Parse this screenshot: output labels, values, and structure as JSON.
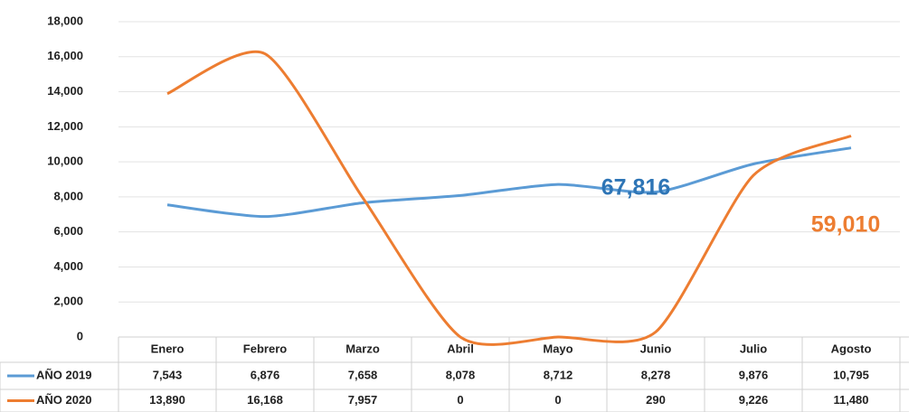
{
  "chart_data": {
    "type": "line",
    "categories": [
      "Enero",
      "Febrero",
      "Marzo",
      "Abril",
      "Mayo",
      "Junio",
      "Julio",
      "Agosto"
    ],
    "series": [
      {
        "name": "AÑO 2019",
        "color": "#5b9bd5",
        "values": [
          7543,
          6876,
          7658,
          8078,
          8712,
          8278,
          9876,
          10795
        ],
        "value_labels": [
          "7,543",
          "6,876",
          "7,658",
          "8,078",
          "8,712",
          "8,278",
          "9,876",
          "10,795"
        ]
      },
      {
        "name": "AÑO 2020",
        "color": "#ed7d31",
        "values": [
          13890,
          16168,
          7957,
          0,
          0,
          290,
          9226,
          11480
        ],
        "value_labels": [
          "13,890",
          "16,168",
          "7,957",
          "0",
          "0",
          "290",
          "9,226",
          "11,480"
        ]
      }
    ],
    "ylim": [
      0,
      18000
    ],
    "yticks": [
      0,
      {
        "value": 2000,
        "label": "2,000"
      },
      {
        "value": 4000,
        "label": "4,000"
      },
      {
        "value": 6000,
        "label": "6,000"
      },
      {
        "value": 8000,
        "label": "8,000"
      },
      {
        "value": 10000,
        "label": "10,000"
      },
      {
        "value": 12000,
        "label": "12,000"
      },
      {
        "value": 14000,
        "label": "14,000"
      },
      {
        "value": 16000,
        "label": "16,000"
      },
      {
        "value": 18000,
        "label": "18,000"
      }
    ],
    "grid": true,
    "annotations": [
      {
        "text": "67,816",
        "color": "#2e75b6"
      },
      {
        "text": "59,010",
        "color": "#ed7d31"
      }
    ]
  }
}
